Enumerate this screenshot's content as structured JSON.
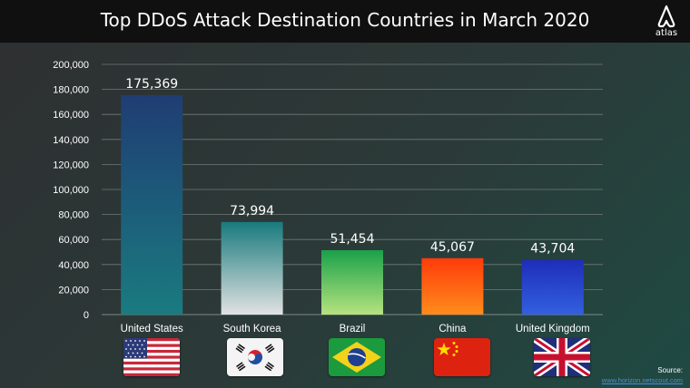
{
  "page": {
    "title": "Top DDoS Attack Destination Countries in March 2020"
  },
  "brand": {
    "name": "atlas"
  },
  "source": {
    "label": "Source:",
    "link": "www.horizon.netscout.com"
  },
  "flags": [
    "us-flag-icon",
    "south-korea-flag-icon",
    "brazil-flag-icon",
    "china-flag-icon",
    "uk-flag-icon"
  ],
  "colors": {
    "us": [
      "#1f3d73",
      "#1a7b80"
    ],
    "south_korea": [
      "#187a7d",
      "#e2e2e2"
    ],
    "brazil": [
      "#1aa14a",
      "#b6e37f"
    ],
    "china": [
      "#ff3b0b",
      "#ff8c1c"
    ],
    "uk": [
      "#1e2db8",
      "#3360e0"
    ]
  },
  "chart_data": {
    "type": "bar",
    "title": "Top DDoS Attack Destination Countries in March 2020",
    "categories": [
      "United States",
      "South Korea",
      "Brazil",
      "China",
      "United Kingdom"
    ],
    "values": [
      175369,
      73994,
      51454,
      45067,
      43704
    ],
    "data_labels": [
      "175,369",
      "73,994",
      "51,454",
      "45,067",
      "43,704"
    ],
    "yticks": [
      "0",
      "20,000",
      "40,000",
      "60,000",
      "80,000",
      "100,000",
      "120,000",
      "140,000",
      "160,000",
      "180,000",
      "200,000"
    ],
    "ylim": [
      0,
      200000
    ],
    "ytick_step": 20000,
    "grid": true,
    "legend": "none"
  }
}
